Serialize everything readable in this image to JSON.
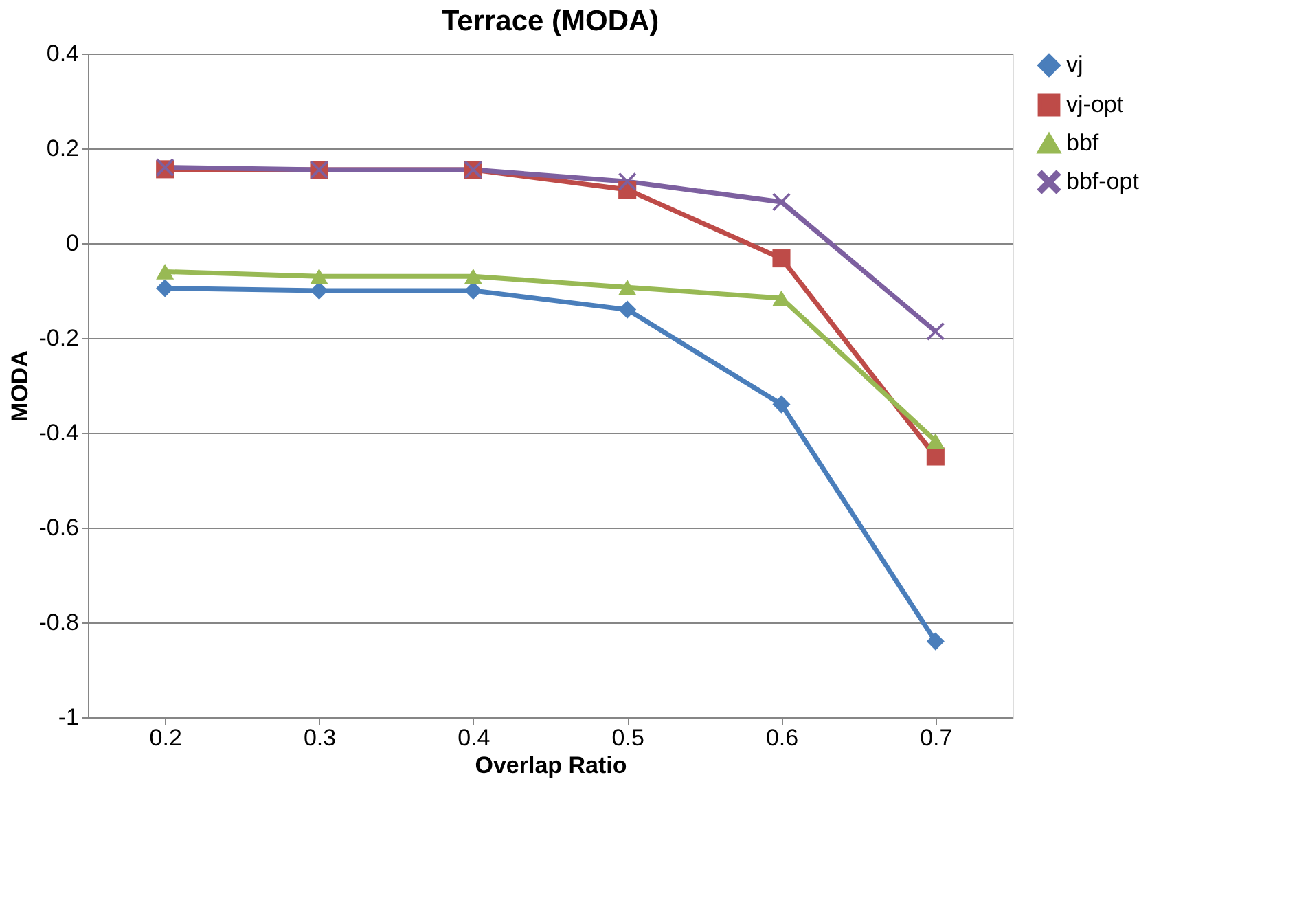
{
  "chart_data": {
    "type": "line",
    "title": "Terrace (MODA)",
    "xlabel": "Overlap Ratio",
    "ylabel": "MODA",
    "categories": [
      "0.2",
      "0.3",
      "0.4",
      "0.5",
      "0.6",
      "0.7"
    ],
    "series": [
      {
        "name": "vj",
        "color": "#4a7ebb",
        "marker": "diamond",
        "values": [
          -0.095,
          -0.1,
          -0.1,
          -0.14,
          -0.34,
          -0.84
        ]
      },
      {
        "name": "vj-opt",
        "color": "#be4b48",
        "marker": "square",
        "values": [
          0.156,
          0.155,
          0.155,
          0.113,
          -0.032,
          -0.45
        ]
      },
      {
        "name": "bbf",
        "color": "#98b954",
        "marker": "triangle",
        "values": [
          -0.06,
          -0.07,
          -0.07,
          -0.093,
          -0.116,
          -0.417
        ]
      },
      {
        "name": "bbf-opt",
        "color": "#7d60a0",
        "marker": "cross",
        "values": [
          0.16,
          0.155,
          0.155,
          0.13,
          0.087,
          -0.186
        ]
      }
    ],
    "ylim": [
      -1,
      0.4
    ],
    "yticks": [
      -1,
      -0.8,
      -0.6,
      -0.4,
      -0.2,
      0,
      0.2,
      0.4
    ],
    "grid": "y",
    "legend": "right",
    "line_style": "solid"
  }
}
